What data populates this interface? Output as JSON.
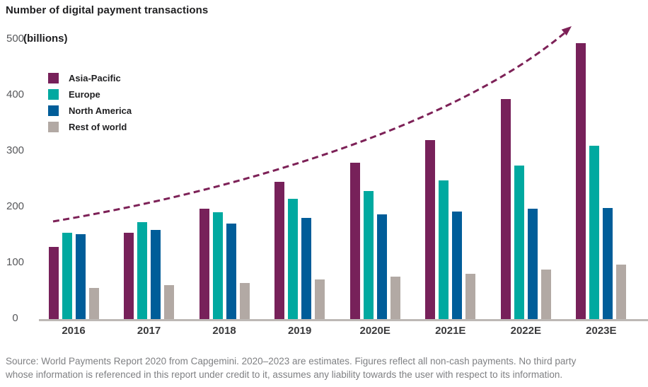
{
  "title": "Number of digital payment transactions",
  "unit_label": "(billions)",
  "chart_data": {
    "type": "bar",
    "title": "Number of digital payment transactions",
    "ylabel": "(billions)",
    "xlabel": "",
    "ylim": [
      0,
      500
    ],
    "yticks": [
      0,
      100,
      200,
      300,
      400,
      500
    ],
    "grid": false,
    "legend_position": "top-left",
    "categories": [
      "2016",
      "2017",
      "2018",
      "2019",
      "2020E",
      "2021E",
      "2022E",
      "2023E"
    ],
    "series": [
      {
        "name": "Asia-Pacific",
        "color": "#77215a",
        "values": [
          129,
          155,
          197,
          245,
          280,
          320,
          394,
          494
        ]
      },
      {
        "name": "Europe",
        "color": "#00a9a0",
        "values": [
          155,
          173,
          191,
          215,
          229,
          248,
          275,
          310
        ]
      },
      {
        "name": "North America",
        "color": "#005d99",
        "values": [
          152,
          160,
          171,
          181,
          187,
          192,
          197,
          199
        ]
      },
      {
        "name": "Rest of world",
        "color": "#b2a9a4",
        "values": [
          56,
          61,
          65,
          71,
          76,
          81,
          89,
          97
        ]
      }
    ],
    "trend_arrow": {
      "description": "dashed curved arrow rising left-to-right",
      "color": "#7d2157"
    },
    "axis_line_color": "#bdb8b5"
  },
  "source": {
    "line1": "Source: World Payments Report 2020 from Capgemini. 2020–2023 are estimates. Figures reflect all non-cash payments. No third party",
    "line2": "whose information is referenced in this report under credit to it, assumes any liability towards the user with respect to its information."
  }
}
